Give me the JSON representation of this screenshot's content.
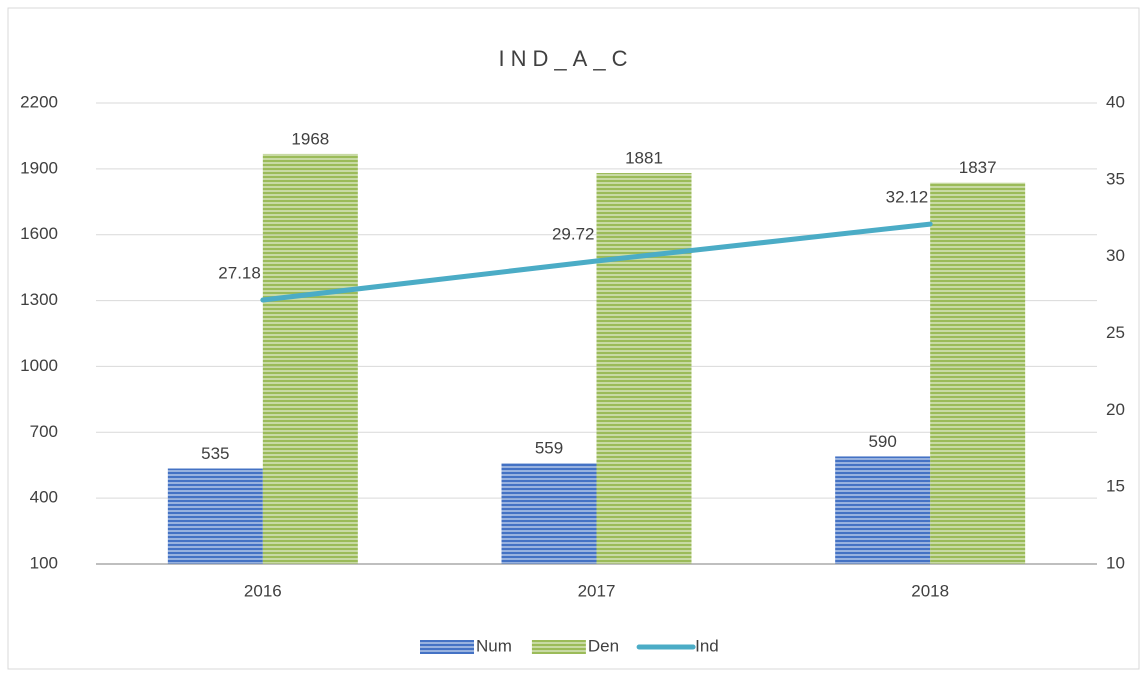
{
  "chart_data": {
    "type": "bar",
    "title": "IND_A_C",
    "categories": [
      "2016",
      "2017",
      "2018"
    ],
    "series": [
      {
        "name": "Num",
        "type": "bar",
        "color": "#4472c4",
        "values": [
          535,
          559,
          590
        ]
      },
      {
        "name": "Den",
        "type": "bar",
        "color": "#9bbb59",
        "values": [
          1968,
          1881,
          1837
        ]
      },
      {
        "name": "Ind",
        "type": "line",
        "color": "#4bacc6",
        "axis": "y2",
        "values": [
          27.18,
          29.72,
          32.12
        ]
      }
    ],
    "ylim": [
      100,
      2200
    ],
    "yticks": [
      100,
      400,
      700,
      1000,
      1300,
      1600,
      1900,
      2200
    ],
    "y2lim": [
      10,
      40
    ],
    "y2ticks": [
      10,
      15,
      20,
      25,
      30,
      35,
      40
    ],
    "grid": true,
    "legend": "bottom"
  }
}
